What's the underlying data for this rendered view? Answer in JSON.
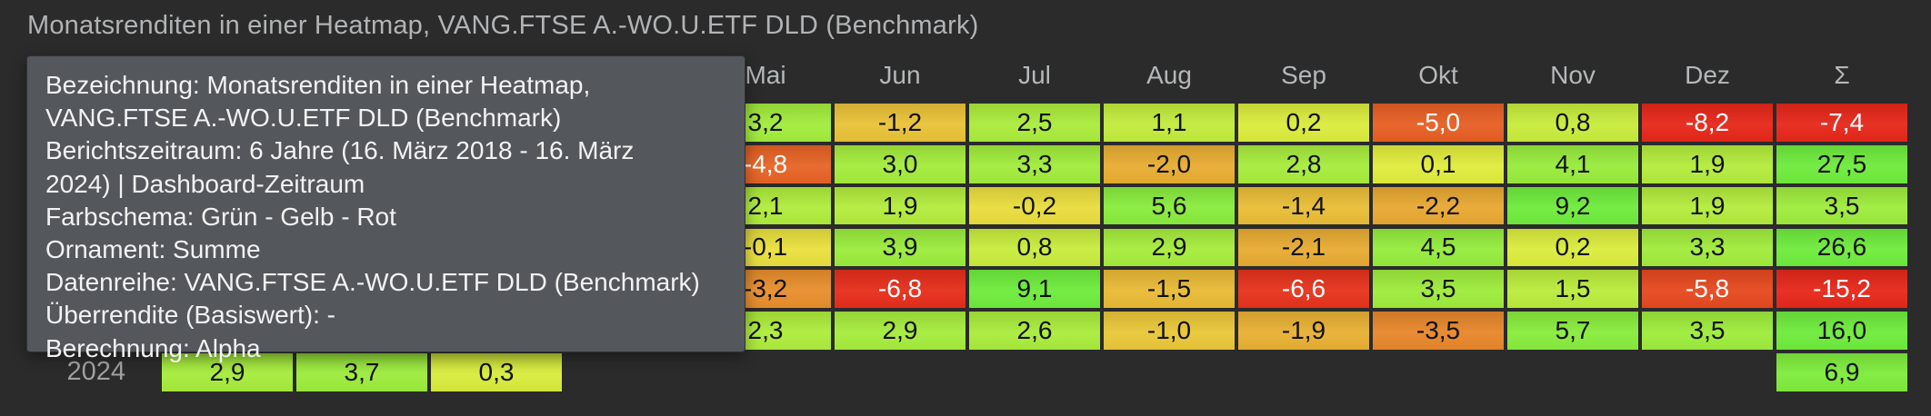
{
  "title": "Monatsrenditen in einer Heatmap, VANG.FTSE A.-WO.U.ETF DLD (Benchmark)",
  "tooltip": {
    "lines": [
      "Bezeichnung: Monatsrenditen in einer Heatmap,",
      "VANG.FTSE A.-WO.U.ETF DLD (Benchmark)",
      "Berichtszeitraum: 6 Jahre (16. März 2018 - 16. März",
      "2024) | Dashboard-Zeitraum",
      "Farbschema: Grün - Gelb - Rot",
      "Ornament: Summe",
      "Datenreihe: VANG.FTSE A.-WO.U.ETF DLD (Benchmark)",
      "Überrendite (Basiswert): -",
      "Berechnung: Alpha"
    ]
  },
  "colors": {
    "background": "#2b2b2b",
    "tooltip_bg": "#54575b",
    "title_text": "#b1b3b5",
    "header_text": "#b4b8ba",
    "row_label_text": "#a0a0a0"
  },
  "chart_data": {
    "type": "heatmap",
    "title": "Monatsrenditen in einer Heatmap, VANG.FTSE A.-WO.U.ETF DLD (Benchmark)",
    "legend_position": "none",
    "grid": false,
    "color_scale": {
      "negative": "#e6392b",
      "zero": "#f0ee3c",
      "positive": "#6eec3c"
    },
    "color_scale_label": "Grün - Gelb - Rot",
    "value_unit": "percent_monthly_return",
    "columns": [
      null,
      null,
      null,
      null,
      "Mai",
      "Jun",
      "Jul",
      "Aug",
      "Sep",
      "Okt",
      "Nov",
      "Dez",
      "Σ"
    ],
    "rows": [
      {
        "label": null,
        "cells": [
          null,
          null,
          null,
          null,
          "3,2",
          "-1,2",
          "2,5",
          "1,1",
          "0,2",
          "-5,0",
          "0,8",
          "-8,2",
          "-7,4"
        ]
      },
      {
        "label": null,
        "cells": [
          null,
          null,
          null,
          null,
          "-4,8",
          "3,0",
          "3,3",
          "-2,0",
          "2,8",
          "0,1",
          "4,1",
          "1,9",
          "27,5"
        ]
      },
      {
        "label": null,
        "cells": [
          null,
          null,
          null,
          null,
          "2,1",
          "1,9",
          "-0,2",
          "5,6",
          "-1,4",
          "-2,2",
          "9,2",
          "1,9",
          "3,5"
        ]
      },
      {
        "label": null,
        "cells": [
          null,
          null,
          null,
          null,
          "-0,1",
          "3,9",
          "0,8",
          "2,9",
          "-2,1",
          "4,5",
          "0,2",
          "3,3",
          "26,6"
        ]
      },
      {
        "label": null,
        "cells": [
          null,
          null,
          null,
          null,
          "-3,2",
          "-6,8",
          "9,1",
          "-1,5",
          "-6,6",
          "3,5",
          "1,5",
          "-5,8",
          "-15,2"
        ]
      },
      {
        "label": null,
        "cells": [
          null,
          null,
          null,
          null,
          "2,3",
          "2,9",
          "2,6",
          "-1,0",
          "-1,9",
          "-3,5",
          "5,7",
          "3,5",
          "16,0"
        ]
      },
      {
        "label": "2024",
        "cells": [
          "2,9",
          "3,7",
          "0,3",
          null,
          null,
          null,
          null,
          null,
          null,
          null,
          null,
          null,
          "6,9"
        ]
      }
    ]
  }
}
